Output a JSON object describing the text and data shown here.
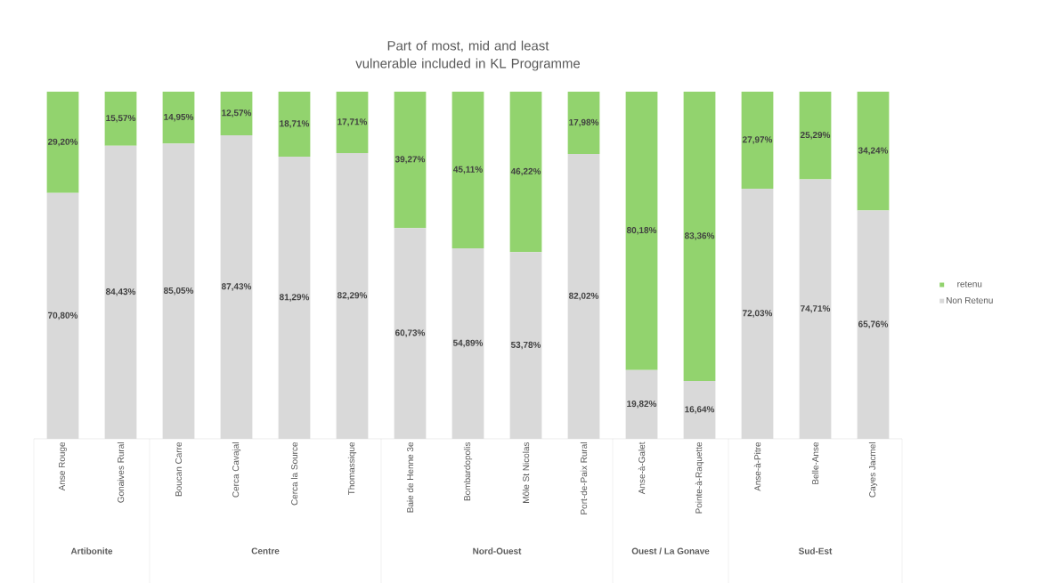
{
  "chart_data": {
    "type": "bar",
    "stacked": true,
    "title": "Part of most, mid and least vulnerable included in KL Programme",
    "categories": [
      "Anse Rouge",
      "Gonaives Rural",
      "Boucan Carre",
      "Cerca Cavajal",
      "Cerca la Source",
      "Thomassique",
      "Baie de Henne 3e",
      "Bombardopolis",
      "Môle St Nicolas",
      "Port-de-Paix Rural",
      "Anse-à-Galet",
      "Pointe-à-Raquette",
      "Anse-à-Pitre",
      "Belle-Anse",
      "Cayes Jacmel"
    ],
    "series": [
      {
        "name": "Non Retenu",
        "color": "#d9d9d9",
        "values": [
          70.8,
          84.43,
          85.05,
          87.43,
          81.29,
          82.29,
          60.73,
          54.89,
          53.78,
          82.02,
          19.82,
          16.64,
          72.03,
          74.71,
          65.76
        ],
        "value_labels": [
          "70,80%",
          "84,43%",
          "85,05%",
          "87,43%",
          "81,29%",
          "82,29%",
          "60,73%",
          "54,89%",
          "53,78%",
          "82,02%",
          "19,82%",
          "16,64%",
          "72,03%",
          "74,71%",
          "65,76%"
        ]
      },
      {
        "name": "retenu",
        "color": "#92d36e",
        "values": [
          29.2,
          15.57,
          14.95,
          12.57,
          18.71,
          17.71,
          39.27,
          45.11,
          46.22,
          17.98,
          80.18,
          83.36,
          27.97,
          25.29,
          34.24
        ],
        "value_labels": [
          "29,20%",
          "15,57%",
          "14,95%",
          "12,57%",
          "18,71%",
          "17,71%",
          "39,27%",
          "45,11%",
          "46,22%",
          "17,98%",
          "80,18%",
          "83,36%",
          "27,97%",
          "25,29%",
          "34,24%"
        ]
      }
    ],
    "annotations": [
      "Artibonite",
      "Centre",
      "Nord-Ouest",
      "Ouest / La Gonave",
      "Sud-Est"
    ],
    "legend": "right"
  }
}
